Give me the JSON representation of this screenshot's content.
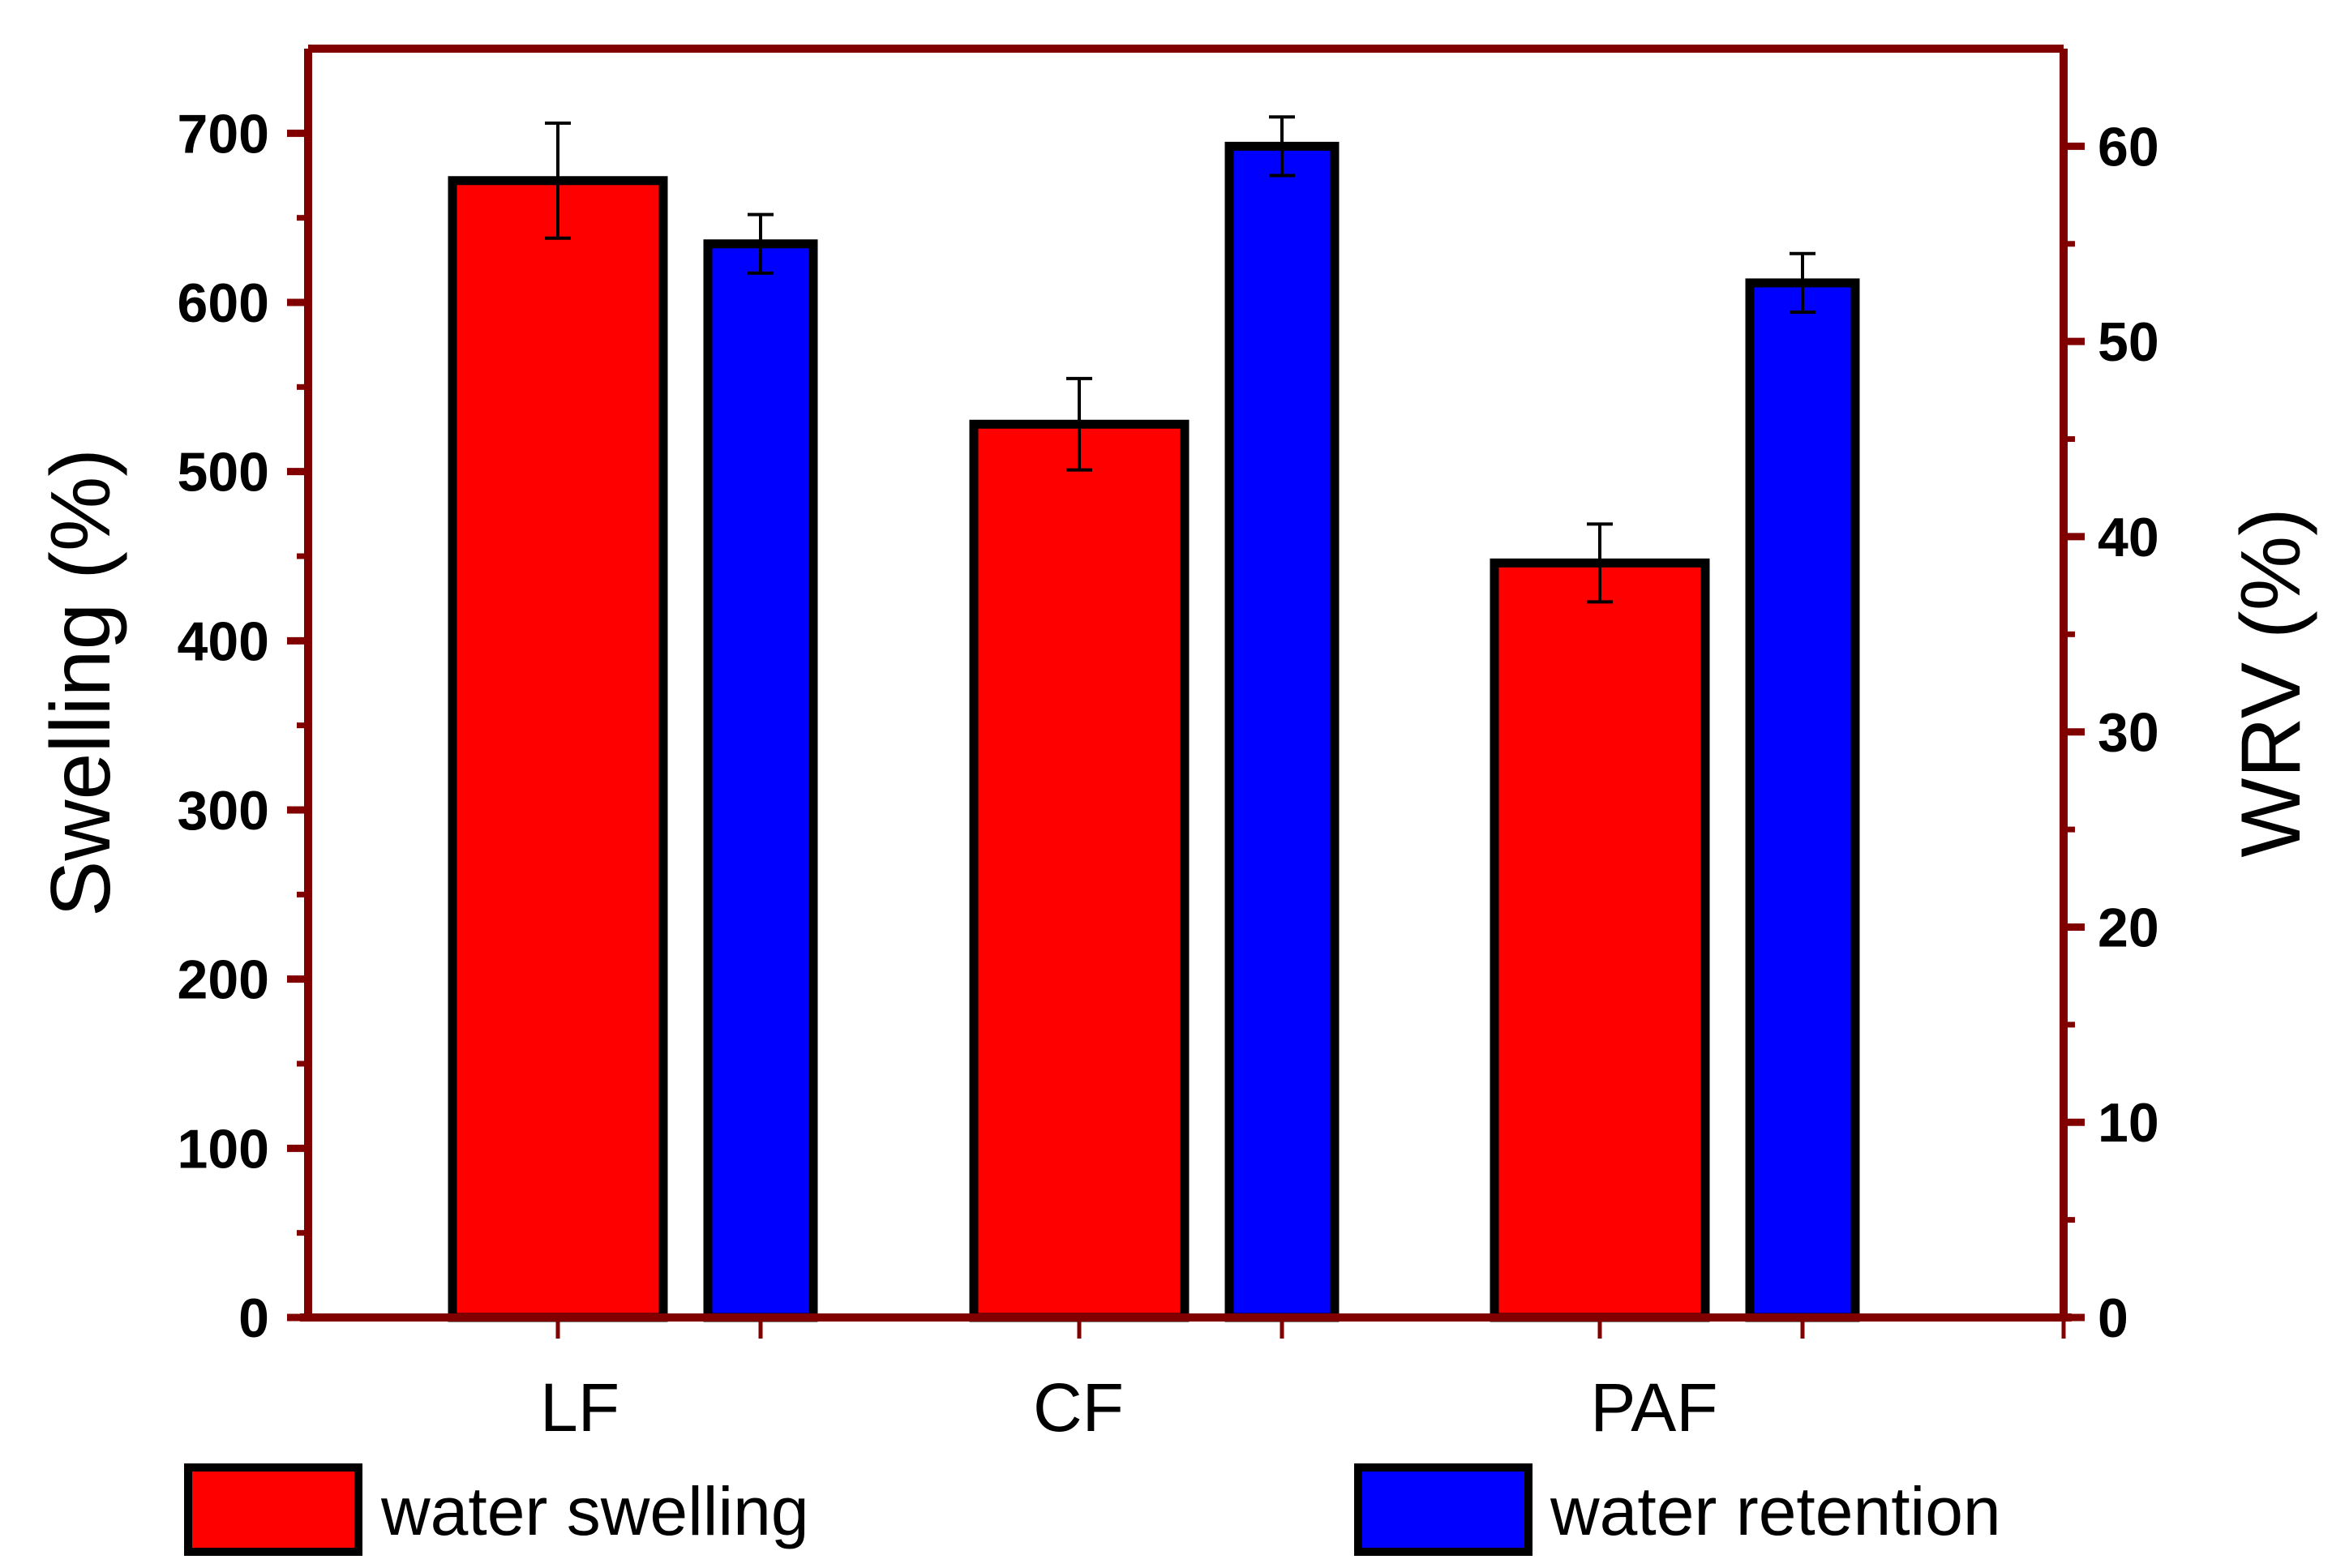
{
  "chart_data": {
    "type": "bar",
    "categories": [
      "LF",
      "CF",
      "PAF"
    ],
    "series": [
      {
        "name": "water swelling",
        "axis": "left",
        "values": [
          672,
          528,
          446
        ],
        "errors": [
          34,
          27,
          23
        ],
        "color": "#ff0000"
      },
      {
        "name": "water retention",
        "axis": "right",
        "values": [
          55,
          60,
          53
        ],
        "errors": [
          1.5,
          1.5,
          1.5
        ],
        "color": "#0000ff"
      }
    ],
    "ylabel_left": "Swelling (%)",
    "ylabel_right": "WRV (%)",
    "ylim_left": [
      0,
      750
    ],
    "ylim_right": [
      0,
      65
    ],
    "yticks_left": [
      0,
      100,
      200,
      300,
      400,
      500,
      600,
      700
    ],
    "yticks_right": [
      0,
      10,
      20,
      30,
      40,
      50,
      60
    ],
    "frame_color": "#800000",
    "bar_edge_color": "#000000",
    "legend_placement": "bottom",
    "grid": false
  }
}
